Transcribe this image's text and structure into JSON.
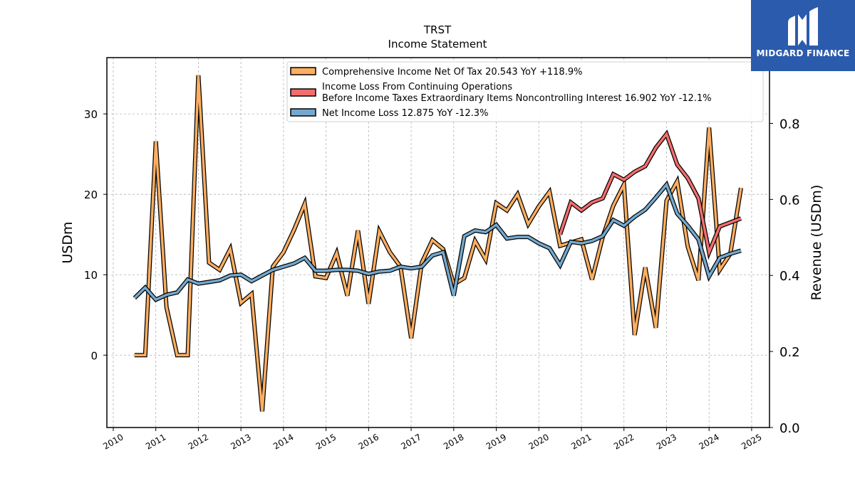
{
  "brand": {
    "name": "MIDGARD FINANCE",
    "bg": "#2b5bad"
  },
  "chart_data": {
    "type": "line",
    "title": "TRST",
    "subtitle": "Income Statement",
    "ylabel": "USDm",
    "ylabel_right": "Revenue (USDm)",
    "ylim": [
      -9,
      37
    ],
    "ylim_right": [
      0.0,
      0.973
    ],
    "xlim": [
      2009.85,
      2025.42
    ],
    "yticks": [
      0,
      10,
      20,
      30
    ],
    "yticks_right": [
      "0.0",
      "0.2",
      "0.4",
      "0.6",
      "0.8"
    ],
    "yticks_right_values": [
      0.0,
      0.2,
      0.4,
      0.6,
      0.8
    ],
    "xticks": [
      2010,
      2011,
      2012,
      2013,
      2014,
      2015,
      2016,
      2017,
      2018,
      2019,
      2020,
      2021,
      2022,
      2023,
      2024,
      2025
    ],
    "grid": true,
    "legend_position": "top-right",
    "series": [
      {
        "name": "Comprehensive Income Net Of Tax",
        "legend_label": "Comprehensive Income Net Of Tax  20.543 YoY +118.9%",
        "color": "#fdae61",
        "points": [
          [
            2010.5,
            0
          ],
          [
            2010.75,
            0
          ],
          [
            2011.0,
            26.6
          ],
          [
            2011.25,
            6.0
          ],
          [
            2011.5,
            0
          ],
          [
            2011.75,
            0
          ],
          [
            2012.0,
            34.8
          ],
          [
            2012.25,
            11.5
          ],
          [
            2012.5,
            10.6
          ],
          [
            2012.75,
            13.2
          ],
          [
            2013.0,
            6.5
          ],
          [
            2013.25,
            7.6
          ],
          [
            2013.5,
            -7.0
          ],
          [
            2013.75,
            11.0
          ],
          [
            2014.0,
            12.8
          ],
          [
            2014.25,
            15.6
          ],
          [
            2014.5,
            18.8
          ],
          [
            2014.75,
            9.8
          ],
          [
            2015.0,
            9.6
          ],
          [
            2015.25,
            12.7
          ],
          [
            2015.5,
            7.4
          ],
          [
            2015.75,
            15.5
          ],
          [
            2016.0,
            6.4
          ],
          [
            2016.25,
            15.4
          ],
          [
            2016.5,
            12.8
          ],
          [
            2016.75,
            11.0
          ],
          [
            2017.0,
            2.1
          ],
          [
            2017.25,
            11.5
          ],
          [
            2017.5,
            14.3
          ],
          [
            2017.75,
            13.2
          ],
          [
            2018.0,
            8.8
          ],
          [
            2018.25,
            9.6
          ],
          [
            2018.5,
            14.2
          ],
          [
            2018.75,
            11.9
          ],
          [
            2019.0,
            18.9
          ],
          [
            2019.25,
            18.0
          ],
          [
            2019.5,
            20.0
          ],
          [
            2019.75,
            16.3
          ],
          [
            2020.0,
            18.5
          ],
          [
            2020.25,
            20.3
          ],
          [
            2020.5,
            13.6
          ],
          [
            2020.75,
            14.0
          ],
          [
            2021.0,
            14.4
          ],
          [
            2021.25,
            9.4
          ],
          [
            2021.5,
            14.7
          ],
          [
            2021.75,
            18.6
          ],
          [
            2022.0,
            21.2
          ],
          [
            2022.25,
            2.5
          ],
          [
            2022.5,
            10.9
          ],
          [
            2022.75,
            3.4
          ],
          [
            2023.0,
            19.2
          ],
          [
            2023.25,
            21.6
          ],
          [
            2023.5,
            13.5
          ],
          [
            2023.75,
            9.3
          ],
          [
            2024.0,
            28.3
          ],
          [
            2024.25,
            10.6
          ],
          [
            2024.5,
            12.6
          ],
          [
            2024.75,
            20.8
          ]
        ]
      },
      {
        "name": "Income Loss From Continuing Operations Before Income Taxes Extraordinary Items Noncontrolling Interest",
        "legend_lines": [
          "Income Loss From Continuing Operations",
          "Before Income Taxes Extraordinary Items Noncontrolling Interest  16.902 YoY -12.1%"
        ],
        "color": "#f46d6d",
        "points": [
          [
            2020.5,
            15.0
          ],
          [
            2020.75,
            19.0
          ],
          [
            2021.0,
            18.0
          ],
          [
            2021.25,
            19.0
          ],
          [
            2021.5,
            19.5
          ],
          [
            2021.75,
            22.5
          ],
          [
            2022.0,
            21.8
          ],
          [
            2022.25,
            22.8
          ],
          [
            2022.5,
            23.5
          ],
          [
            2022.75,
            25.8
          ],
          [
            2023.0,
            27.5
          ],
          [
            2023.25,
            23.7
          ],
          [
            2023.5,
            22.0
          ],
          [
            2023.75,
            19.5
          ],
          [
            2024.0,
            12.8
          ],
          [
            2024.25,
            16.0
          ],
          [
            2024.5,
            16.5
          ],
          [
            2024.75,
            17.0
          ]
        ]
      },
      {
        "name": "Net Income Loss",
        "legend_label": "Net Income Loss  12.875 YoY -12.3%",
        "color": "#74a9cf",
        "points": [
          [
            2010.5,
            7.1
          ],
          [
            2010.75,
            8.4
          ],
          [
            2011.0,
            6.9
          ],
          [
            2011.25,
            7.5
          ],
          [
            2011.5,
            7.8
          ],
          [
            2011.75,
            9.4
          ],
          [
            2012.0,
            8.9
          ],
          [
            2012.25,
            9.1
          ],
          [
            2012.5,
            9.3
          ],
          [
            2012.75,
            9.9
          ],
          [
            2013.0,
            10.0
          ],
          [
            2013.25,
            9.2
          ],
          [
            2013.5,
            9.9
          ],
          [
            2013.75,
            10.6
          ],
          [
            2014.0,
            11.0
          ],
          [
            2014.25,
            11.4
          ],
          [
            2014.5,
            12.1
          ],
          [
            2014.75,
            10.5
          ],
          [
            2015.0,
            10.5
          ],
          [
            2015.25,
            10.6
          ],
          [
            2015.5,
            10.6
          ],
          [
            2015.75,
            10.5
          ],
          [
            2016.0,
            10.1
          ],
          [
            2016.25,
            10.4
          ],
          [
            2016.5,
            10.5
          ],
          [
            2016.75,
            11.0
          ],
          [
            2017.0,
            10.8
          ],
          [
            2017.25,
            11.0
          ],
          [
            2017.5,
            12.4
          ],
          [
            2017.75,
            12.8
          ],
          [
            2018.0,
            7.4
          ],
          [
            2018.25,
            14.8
          ],
          [
            2018.5,
            15.5
          ],
          [
            2018.75,
            15.3
          ],
          [
            2019.0,
            16.2
          ],
          [
            2019.25,
            14.5
          ],
          [
            2019.5,
            14.7
          ],
          [
            2019.75,
            14.7
          ],
          [
            2020.0,
            13.9
          ],
          [
            2020.25,
            13.3
          ],
          [
            2020.5,
            11.2
          ],
          [
            2020.75,
            14.1
          ],
          [
            2021.0,
            13.9
          ],
          [
            2021.25,
            14.2
          ],
          [
            2021.5,
            14.8
          ],
          [
            2021.75,
            16.8
          ],
          [
            2022.0,
            16.1
          ],
          [
            2022.25,
            17.2
          ],
          [
            2022.5,
            18.1
          ],
          [
            2022.75,
            19.6
          ],
          [
            2023.0,
            21.2
          ],
          [
            2023.25,
            17.6
          ],
          [
            2023.5,
            16.1
          ],
          [
            2023.75,
            14.4
          ],
          [
            2024.0,
            9.8
          ],
          [
            2024.25,
            12.1
          ],
          [
            2024.5,
            12.6
          ],
          [
            2024.75,
            13.0
          ]
        ]
      }
    ]
  }
}
